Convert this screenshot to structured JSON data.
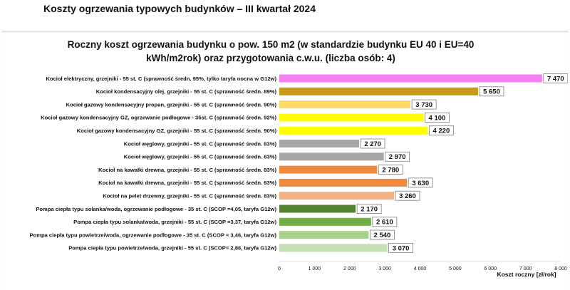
{
  "page_title": "Koszty ogrzewania typowych budynków – III kwartał 2024",
  "chart_data": {
    "type": "bar",
    "orientation": "horizontal",
    "title_line1": "Roczny koszt ogrzewania budynku  o pow. 150 m2 (w standardzie budynku EU 40 i EU=40",
    "title_line2": "kWh/m2rok) oraz przygotowania c.w.u. (liczba osób: 4)",
    "xlabel": "Koszt roczny [zł/rok]",
    "ylabel": "",
    "xlim": [
      0,
      8000
    ],
    "xticks": [
      0,
      1000,
      2000,
      3000,
      4000,
      5000,
      6000,
      7000,
      8000
    ],
    "xtick_labels": [
      "0",
      "1 000",
      "2 000",
      "3 000",
      "4 000",
      "5 000",
      "6 000",
      "7 000",
      "8 000"
    ],
    "grid": false,
    "categories": [
      "Kocioł  elektryczny,  grzejniki - 55 st. C  (sprawność średn. 95%, tylko taryfa nocna w G12w)",
      "Kocioł  kondensacyjny olej,  grzejniki - 55 st. C  (sprawność średn. 89%)",
      "Kocioł gazowy kondensacyjny propan, grzejniki - 55 st. C  (sprawność średn. 90%)",
      "Kocioł gazowy kondensacyjny GZ, ogrzewanie podłogowe - 35st. C   (sprawność średn. 92%)",
      "Kocioł gazowy kondensacyjny GZ, grzejniki - 55 st. C   (sprawność średn. 90%)",
      "Kocioł węglowy,  grzejniki - 55 st. C   (sprawność średn. 83%)",
      "Kocioł węglowy,  grzejniki - 55 st. C   (sprawność średn. 63%)",
      "Kocioł na kawałki drewna, grzejniki - 55 st. C  (sprawność średn. 83%)",
      "Kocioł na kawałki drewna, grzejniki - 55 st. C  (sprawność średn. 63%)",
      "Kocioł na pelet drzewny, grzejniki - 55 st. C  (sprawność średn. 83%)",
      "Pompa ciepła typu solanka/woda, ogrzewanie podłogowe - 35 st. C  (SCOP =4,05, taryfa G12w)",
      "Pompa ciepła typu solanka/woda, grzejniki - 55 st. C  (SCOP =3,37, taryfa G12w)",
      "Pompa ciepła typu powietrze/woda, ogrzewanie podłogowe - 35 st. C  (SCOP = 3,46, taryfa G12w)",
      "Pompa ciepła typu powietrze/woda, grzejniki - 55 st. C  (SCOP= 2,86, taryfa G12w)"
    ],
    "values": [
      7470,
      5650,
      3730,
      4100,
      4220,
      2270,
      2970,
      2780,
      3630,
      3260,
      2170,
      2610,
      2540,
      3070
    ],
    "value_labels": [
      "7 470",
      "5 650",
      "3 730",
      "4 100",
      "4 220",
      "2 270",
      "2 970",
      "2 780",
      "3 630",
      "3 260",
      "2 170",
      "2 610",
      "2 540",
      "3 070"
    ],
    "colors": [
      "#f77ef0",
      "#c99a17",
      "#ffd966",
      "#ffff00",
      "#ffff00",
      "#a6a6a6",
      "#a6a6a6",
      "#ef8a3e",
      "#ef8a3e",
      "#f4b183",
      "#548235",
      "#70ad47",
      "#a9d18e",
      "#c5e0b4"
    ]
  }
}
